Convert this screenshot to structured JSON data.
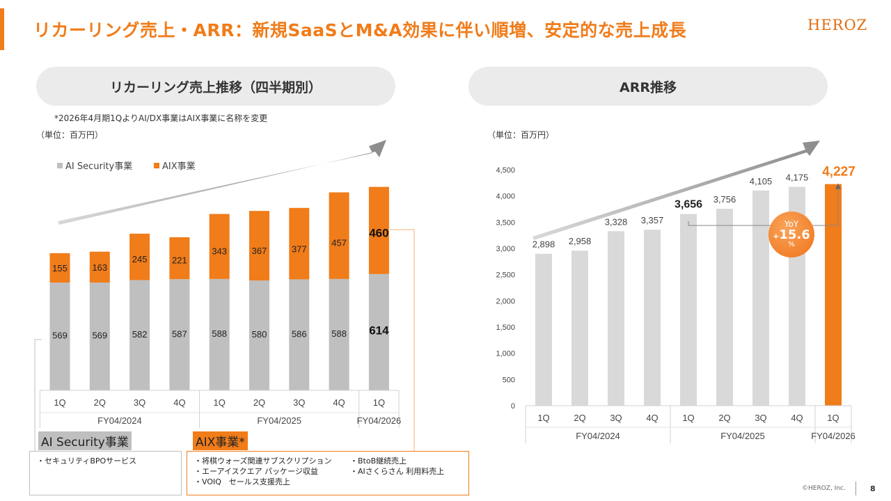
{
  "header": {
    "title": "リカーリング売上・ARR：新規SaaSとM&A効果に伴い順増、安定的な売上成長",
    "logo": "HEROZ"
  },
  "left_panel": {
    "title": "リカーリング売上推移（四半期別）",
    "note": "*2026年4月期1QよりAI/DX事業はAIX事業に名称を変更",
    "unit": "（単位：百万円）"
  },
  "right_panel": {
    "title": "ARR推移",
    "unit": "（単位：百万円）"
  },
  "chart_data": [
    {
      "type": "bar",
      "stacked": true,
      "categories": [
        "1Q",
        "2Q",
        "3Q",
        "4Q",
        "1Q",
        "2Q",
        "3Q",
        "4Q",
        "1Q"
      ],
      "groups": [
        {
          "label": "FY04/2024",
          "count": 4
        },
        {
          "label": "FY04/2025",
          "count": 4
        },
        {
          "label": "FY04/2026",
          "count": 1
        }
      ],
      "series": [
        {
          "name": "AI Security事業",
          "color": "#bfbfbf",
          "values": [
            569,
            569,
            582,
            587,
            588,
            580,
            586,
            588,
            614
          ]
        },
        {
          "name": "AIX事業",
          "color": "#f07c1a",
          "values": [
            155,
            163,
            245,
            221,
            343,
            367,
            377,
            457,
            460
          ]
        }
      ],
      "legend": "top-left",
      "grid": false
    },
    {
      "type": "bar",
      "categories": [
        "1Q",
        "2Q",
        "3Q",
        "4Q",
        "1Q",
        "2Q",
        "3Q",
        "4Q",
        "1Q"
      ],
      "groups": [
        {
          "label": "FY04/2024",
          "count": 4
        },
        {
          "label": "FY04/2025",
          "count": 4
        },
        {
          "label": "FY04/2026",
          "count": 1
        }
      ],
      "values": [
        2898,
        2958,
        3328,
        3357,
        3656,
        3756,
        4105,
        4175,
        4227
      ],
      "value_labels": [
        "2,898",
        "2,958",
        "3,328",
        "3,357",
        "3,656",
        "3,756",
        "4,105",
        "4,175",
        "4,227"
      ],
      "yticks": [
        "0",
        "500",
        "1,000",
        "1,500",
        "2,000",
        "2,500",
        "3,000",
        "3,500",
        "4,000",
        "4,500"
      ],
      "ylim": [
        0,
        4500
      ],
      "bar_color": "#d9d9d9",
      "highlight_color": "#f07c1a",
      "annotation": {
        "title": "YoY",
        "sign": "+",
        "value": "15.6",
        "unit": "%"
      },
      "grid": false
    }
  ],
  "segments": {
    "security": {
      "label": "AI Security事業",
      "items": [
        "・セキュリティBPOサービス"
      ]
    },
    "aix": {
      "label": "AIX事業*",
      "items": [
        "・将棋ウォーズ関連サブスクリプション",
        "・BtoB継続売上",
        "・エーアイスクエア パッケージ収益",
        "・AIさくらさん 利用料売上",
        "・VOIQ　セールス支援売上"
      ]
    }
  },
  "footer": {
    "copyright": "©HEROZ, Inc.",
    "page": "8"
  }
}
